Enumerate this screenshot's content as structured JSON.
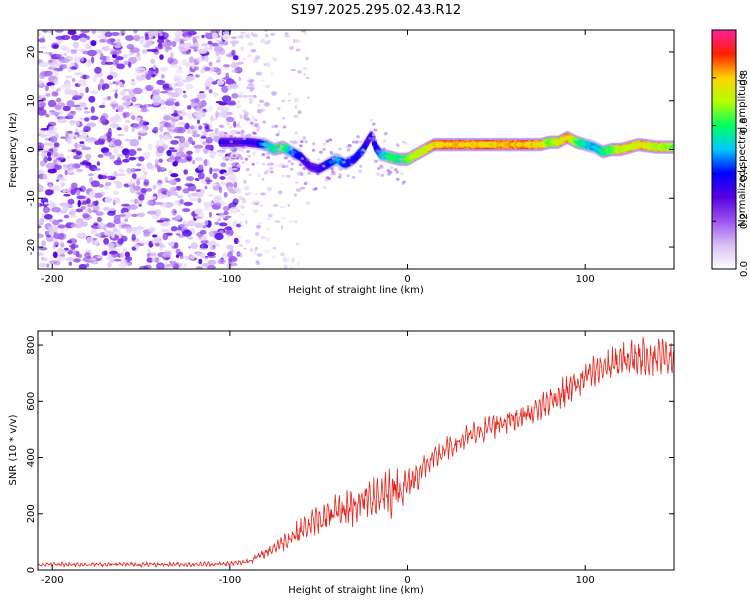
{
  "figure_title": "S197.2025.295.02.43.R12",
  "chart_data": [
    {
      "type": "heatmap",
      "name": "spectrogram",
      "xlabel": "Height of straight line (km)",
      "ylabel": "Frequency (Hz)",
      "xlim": [
        -208,
        150
      ],
      "ylim": [
        -24.5,
        24.5
      ],
      "x_ticks": [
        -200,
        -100,
        0,
        100
      ],
      "x_tick_labels": [
        "-200",
        "-100",
        "0",
        "100"
      ],
      "y_ticks": [
        -20,
        -10,
        0,
        10,
        20
      ],
      "y_tick_labels": [
        "-20",
        "-10",
        "0",
        "10",
        "20"
      ],
      "noise_region_x": [
        -208,
        -95
      ],
      "ridge_track": {
        "height_km": [
          -105,
          -95,
          -90,
          -85,
          -80,
          -75,
          -70,
          -65,
          -60,
          -55,
          -50,
          -45,
          -40,
          -35,
          -30,
          -25,
          -22,
          -20,
          -18,
          -15,
          -10,
          -5,
          0,
          5,
          10,
          15,
          20,
          30,
          40,
          50,
          60,
          70,
          75,
          80,
          85,
          90,
          95,
          100,
          105,
          110,
          115,
          120,
          130,
          140,
          150
        ],
        "frequency_hz": [
          1.5,
          1.5,
          1.5,
          1.3,
          1.0,
          0.0,
          0.5,
          -0.5,
          -1.5,
          -3.5,
          -4.0,
          -3.0,
          -2.0,
          -3.0,
          -2.0,
          0.0,
          2.0,
          3.0,
          0.5,
          -1.0,
          -1.5,
          -2.0,
          -2.0,
          -1.0,
          0.0,
          1.0,
          1.0,
          1.0,
          1.0,
          1.0,
          1.0,
          1.0,
          1.0,
          1.5,
          1.5,
          2.5,
          1.5,
          1.0,
          0.5,
          -0.5,
          0.0,
          0.0,
          1.0,
          0.5,
          0.5
        ],
        "amplitude": [
          0.35,
          0.3,
          0.35,
          0.35,
          0.55,
          0.65,
          0.7,
          0.5,
          0.4,
          0.3,
          0.35,
          0.4,
          0.55,
          0.45,
          0.4,
          0.45,
          0.3,
          0.4,
          0.4,
          0.55,
          0.7,
          0.65,
          0.75,
          0.85,
          0.85,
          0.95,
          0.95,
          0.95,
          0.95,
          0.95,
          0.95,
          0.95,
          0.9,
          0.75,
          0.85,
          0.95,
          0.75,
          0.6,
          0.55,
          0.65,
          0.75,
          0.85,
          0.9,
          0.85,
          0.8
        ]
      },
      "colorbar": {
        "label": "Normalized spectral amplitude",
        "range": [
          0.0,
          1.0
        ],
        "ticks": [
          0.0,
          0.2,
          0.4,
          0.6,
          0.8
        ],
        "tick_labels": [
          "0.0",
          "0.2",
          "0.4",
          "0.6",
          "0.8"
        ],
        "stops": [
          "#ffffff",
          "#d9bff5",
          "#9a55f0",
          "#5a00e0",
          "#0000ff",
          "#00c8ff",
          "#00ff60",
          "#b4ff00",
          "#ffd200",
          "#ff2000",
          "#ff20a0"
        ]
      }
    },
    {
      "type": "line",
      "name": "snr",
      "xlabel": "Height of straight line (km)",
      "ylabel": "SNR (10 * v/v)",
      "xlim": [
        -208,
        150
      ],
      "ylim": [
        0,
        850
      ],
      "x_ticks": [
        -200,
        -100,
        0,
        100
      ],
      "x_tick_labels": [
        "-200",
        "-100",
        "0",
        "100"
      ],
      "y_ticks": [
        0,
        200,
        400,
        600,
        800
      ],
      "y_tick_labels": [
        "0",
        "200",
        "400",
        "600",
        "800"
      ],
      "series": [
        {
          "name": "SNR",
          "color": "#e8221a",
          "x": [
            -208,
            -180,
            -150,
            -120,
            -100,
            -90,
            -80,
            -70,
            -60,
            -50,
            -40,
            -30,
            -20,
            -10,
            0,
            10,
            20,
            30,
            40,
            50,
            60,
            70,
            80,
            90,
            100,
            110,
            120,
            130,
            140,
            150
          ],
          "y": [
            20,
            20,
            20,
            20,
            22,
            30,
            60,
            100,
            140,
            180,
            200,
            230,
            260,
            280,
            300,
            370,
            420,
            460,
            490,
            520,
            540,
            560,
            600,
            640,
            680,
            720,
            740,
            760,
            760,
            760
          ],
          "noise_amplitude": [
            8,
            8,
            8,
            8,
            8,
            10,
            15,
            30,
            40,
            50,
            60,
            70,
            80,
            90,
            70,
            45,
            40,
            40,
            40,
            45,
            45,
            45,
            50,
            55,
            60,
            60,
            60,
            60,
            60,
            60
          ]
        }
      ]
    }
  ]
}
